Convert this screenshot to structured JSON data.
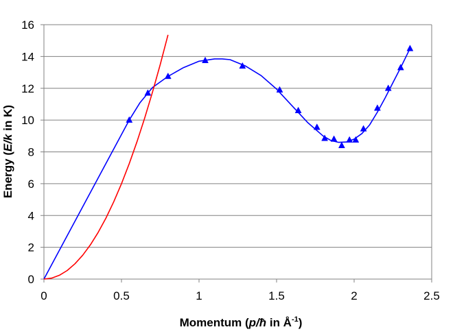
{
  "chart_data": {
    "type": "scatter",
    "title": "",
    "xlabel": {
      "prefix": "Momentum (",
      "var": "p/ħ",
      "middle": "  in Å",
      "sup": "-1",
      "suffix": ")"
    },
    "ylabel": {
      "prefix": "Energy (",
      "var": "E/k",
      "suffix": " in K)"
    },
    "xlim": [
      0,
      2.5
    ],
    "ylim": [
      0,
      16
    ],
    "xticks": [
      0,
      0.5,
      1,
      1.5,
      2,
      2.5
    ],
    "xtick_labels": [
      "0",
      "0.5",
      "1",
      "1.5",
      "2",
      "2.5"
    ],
    "yticks": [
      0,
      2,
      4,
      6,
      8,
      10,
      12,
      14,
      16
    ],
    "ytick_labels": [
      "0",
      "2",
      "4",
      "6",
      "8",
      "10",
      "12",
      "14",
      "16"
    ],
    "grid": "horizontal",
    "legend": "none",
    "series": [
      {
        "kind": "scatter",
        "marker": "triangle",
        "color": "#0000ff",
        "x": [
          0.55,
          0.67,
          0.8,
          1.04,
          1.28,
          1.52,
          1.64,
          1.76,
          1.81,
          1.87,
          1.92,
          1.97,
          2.01,
          2.06,
          2.15,
          2.22,
          2.3,
          2.36
        ],
        "y": [
          10.0,
          11.7,
          12.75,
          13.75,
          13.4,
          11.9,
          10.6,
          9.55,
          8.85,
          8.8,
          8.4,
          8.75,
          8.75,
          9.45,
          10.75,
          12.0,
          13.3,
          14.5
        ]
      },
      {
        "kind": "line",
        "color": "#0000ff",
        "x": [
          0,
          0.55,
          0.62,
          0.7,
          0.8,
          0.9,
          1.0,
          1.1,
          1.15,
          1.2,
          1.3,
          1.4,
          1.5,
          1.6,
          1.7,
          1.8,
          1.85,
          1.9,
          1.95,
          2.0,
          2.05,
          2.1,
          2.15,
          2.2,
          2.25,
          2.3,
          2.36
        ],
        "y": [
          0,
          10.0,
          11.1,
          12.05,
          12.75,
          13.3,
          13.7,
          13.85,
          13.85,
          13.8,
          13.4,
          12.8,
          11.95,
          10.9,
          9.85,
          9.0,
          8.72,
          8.6,
          8.62,
          8.8,
          9.15,
          9.7,
          10.5,
          11.4,
          12.35,
          13.3,
          14.5
        ]
      },
      {
        "kind": "line",
        "color": "#ff0000",
        "x": [
          0,
          0.05,
          0.1,
          0.15,
          0.2,
          0.25,
          0.3,
          0.35,
          0.4,
          0.45,
          0.5,
          0.55,
          0.6,
          0.65,
          0.7,
          0.75,
          0.8
        ],
        "y": [
          0,
          0.06,
          0.24,
          0.54,
          0.96,
          1.5,
          2.16,
          2.94,
          3.84,
          4.86,
          6.0,
          7.26,
          8.64,
          10.14,
          11.76,
          13.5,
          15.36
        ]
      }
    ]
  }
}
